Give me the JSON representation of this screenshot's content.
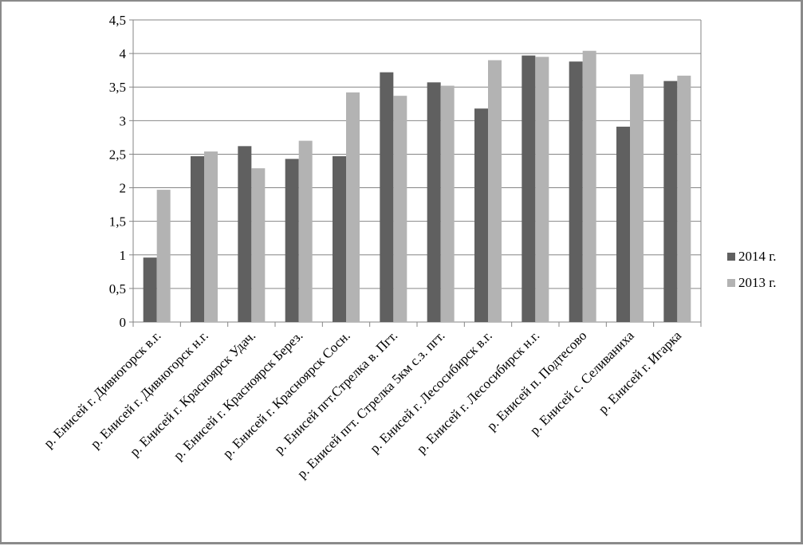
{
  "chart_data": {
    "type": "bar",
    "title": "",
    "xlabel": "",
    "ylabel": "",
    "ylim": [
      0,
      4.5
    ],
    "yticks": [
      "0",
      "0,5",
      "1",
      "1,5",
      "2",
      "2,5",
      "3",
      "3,5",
      "4",
      "4,5"
    ],
    "grid": true,
    "legend_position": "right",
    "categories": [
      "р. Енисей г. Дивногорск в.г.",
      "р. Енисей г. Дивногорск н.г.",
      "р. Енисей г. Красноярск Удач.",
      "р. Енисей г. Красноярск Берез.",
      "р. Енисей г. Красноярск Сосн.",
      "р. Енисей пгт.Стрелка в. Пгт.",
      "р. Енисей пгт. Стрелка 5км с.з. пгт.",
      "р. Енисей г. Лесосибирск     в.г.",
      "р. Енисей г. Лесосибирск     н.г.",
      "р. Енисей п. Подтесово",
      "р. Енисей с. Селиваниха",
      "р. Енисей г. Игарка"
    ],
    "series": [
      {
        "name": "2014 г.",
        "color": "#606060",
        "values": [
          0.96,
          2.47,
          2.62,
          2.43,
          2.47,
          3.72,
          3.57,
          3.18,
          3.97,
          3.88,
          2.91,
          3.59
        ]
      },
      {
        "name": "2013 г.",
        "color": "#b3b3b3",
        "values": [
          1.97,
          2.54,
          2.29,
          2.7,
          3.42,
          3.37,
          3.52,
          3.9,
          3.95,
          4.04,
          3.69,
          3.67
        ]
      }
    ]
  }
}
